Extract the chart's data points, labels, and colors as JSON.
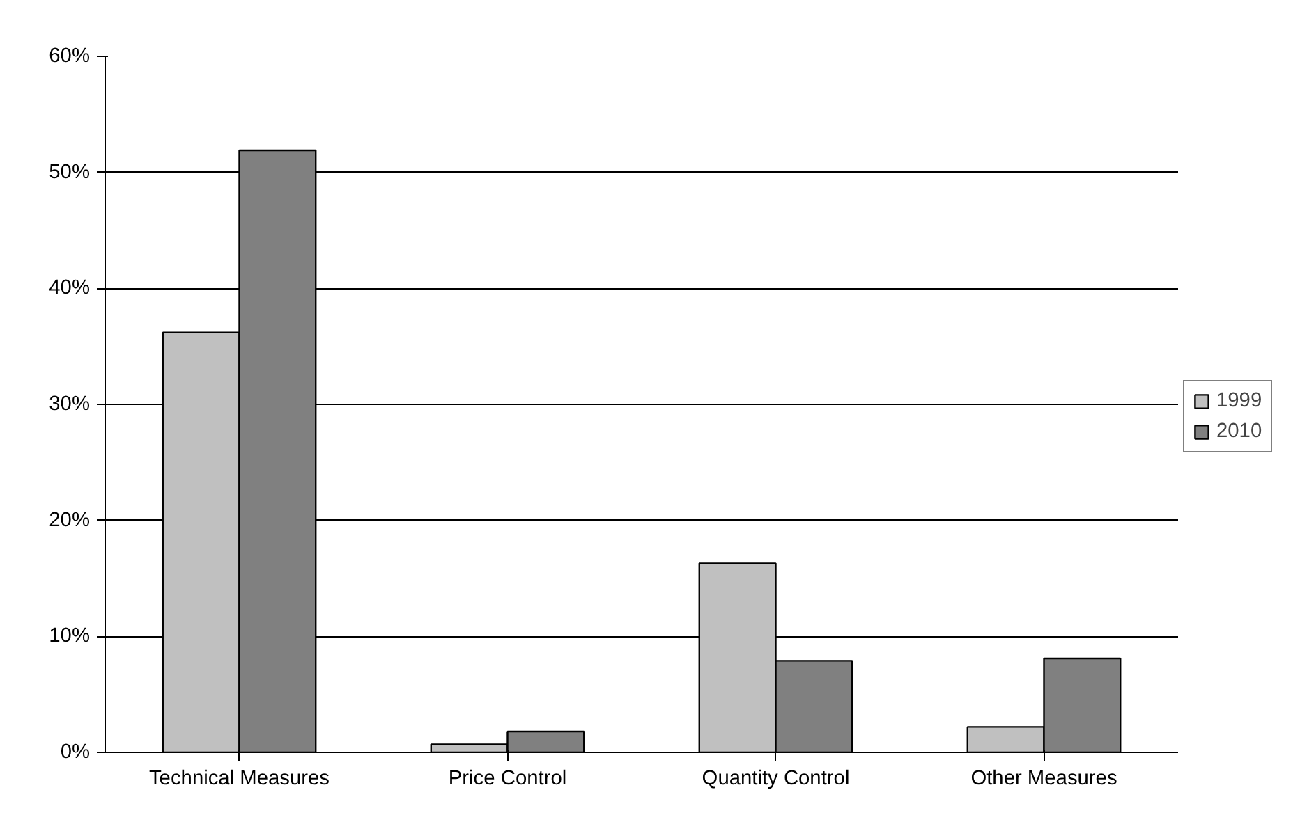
{
  "chart_data": {
    "type": "bar",
    "categories": [
      "Technical Measures",
      "Price Control",
      "Quantity Control",
      "Other Measures"
    ],
    "series": [
      {
        "name": "1999",
        "color": "#c0c0c0",
        "values": [
          36.2,
          0.7,
          16.3,
          2.2
        ]
      },
      {
        "name": "2010",
        "color": "#808080",
        "values": [
          51.9,
          1.8,
          7.9,
          8.1
        ]
      }
    ],
    "ylim": [
      0,
      60
    ],
    "yticks": [
      {
        "value": 0,
        "label": "0%"
      },
      {
        "value": 10,
        "label": "10%"
      },
      {
        "value": 20,
        "label": "20%"
      },
      {
        "value": 30,
        "label": "30%"
      },
      {
        "value": 40,
        "label": "40%"
      },
      {
        "value": 50,
        "label": "50%"
      },
      {
        "value": 60,
        "label": "60%"
      }
    ],
    "grid": "y",
    "legend": "right"
  }
}
